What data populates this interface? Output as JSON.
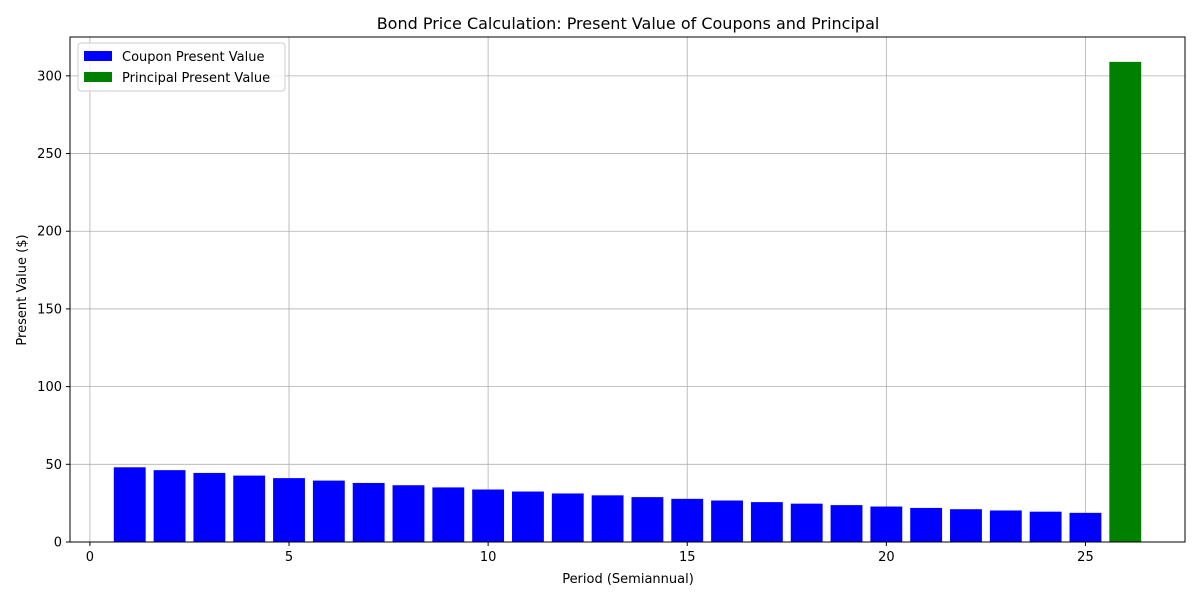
{
  "chart_data": {
    "type": "bar",
    "title": "Bond Price Calculation: Present Value of Coupons and Principal",
    "xlabel": "Period (Semiannual)",
    "ylabel": "Present Value ($)",
    "xlim": [
      -0.5,
      27.5
    ],
    "ylim": [
      0,
      325
    ],
    "xticks": [
      0,
      5,
      10,
      15,
      20,
      25
    ],
    "yticks": [
      0,
      50,
      100,
      150,
      200,
      250,
      300
    ],
    "grid": true,
    "legend_position": "upper-left",
    "series": [
      {
        "name": "Coupon Present Value",
        "color": "#0000ff",
        "x": [
          1,
          2,
          3,
          4,
          5,
          6,
          7,
          8,
          9,
          10,
          11,
          12,
          13,
          14,
          15,
          16,
          17,
          18,
          19,
          20,
          21,
          22,
          23,
          24,
          25
        ],
        "values": [
          48.08,
          46.23,
          44.45,
          42.74,
          41.1,
          39.52,
          38.0,
          36.54,
          35.13,
          33.78,
          32.48,
          31.23,
          30.03,
          28.88,
          27.77,
          26.7,
          25.67,
          24.68,
          23.74,
          22.82,
          21.94,
          21.1,
          20.29,
          19.51,
          18.76
        ]
      },
      {
        "name": "Principal Present Value",
        "color": "#008000",
        "x": [
          26
        ],
        "values": [
          309
        ]
      }
    ]
  }
}
